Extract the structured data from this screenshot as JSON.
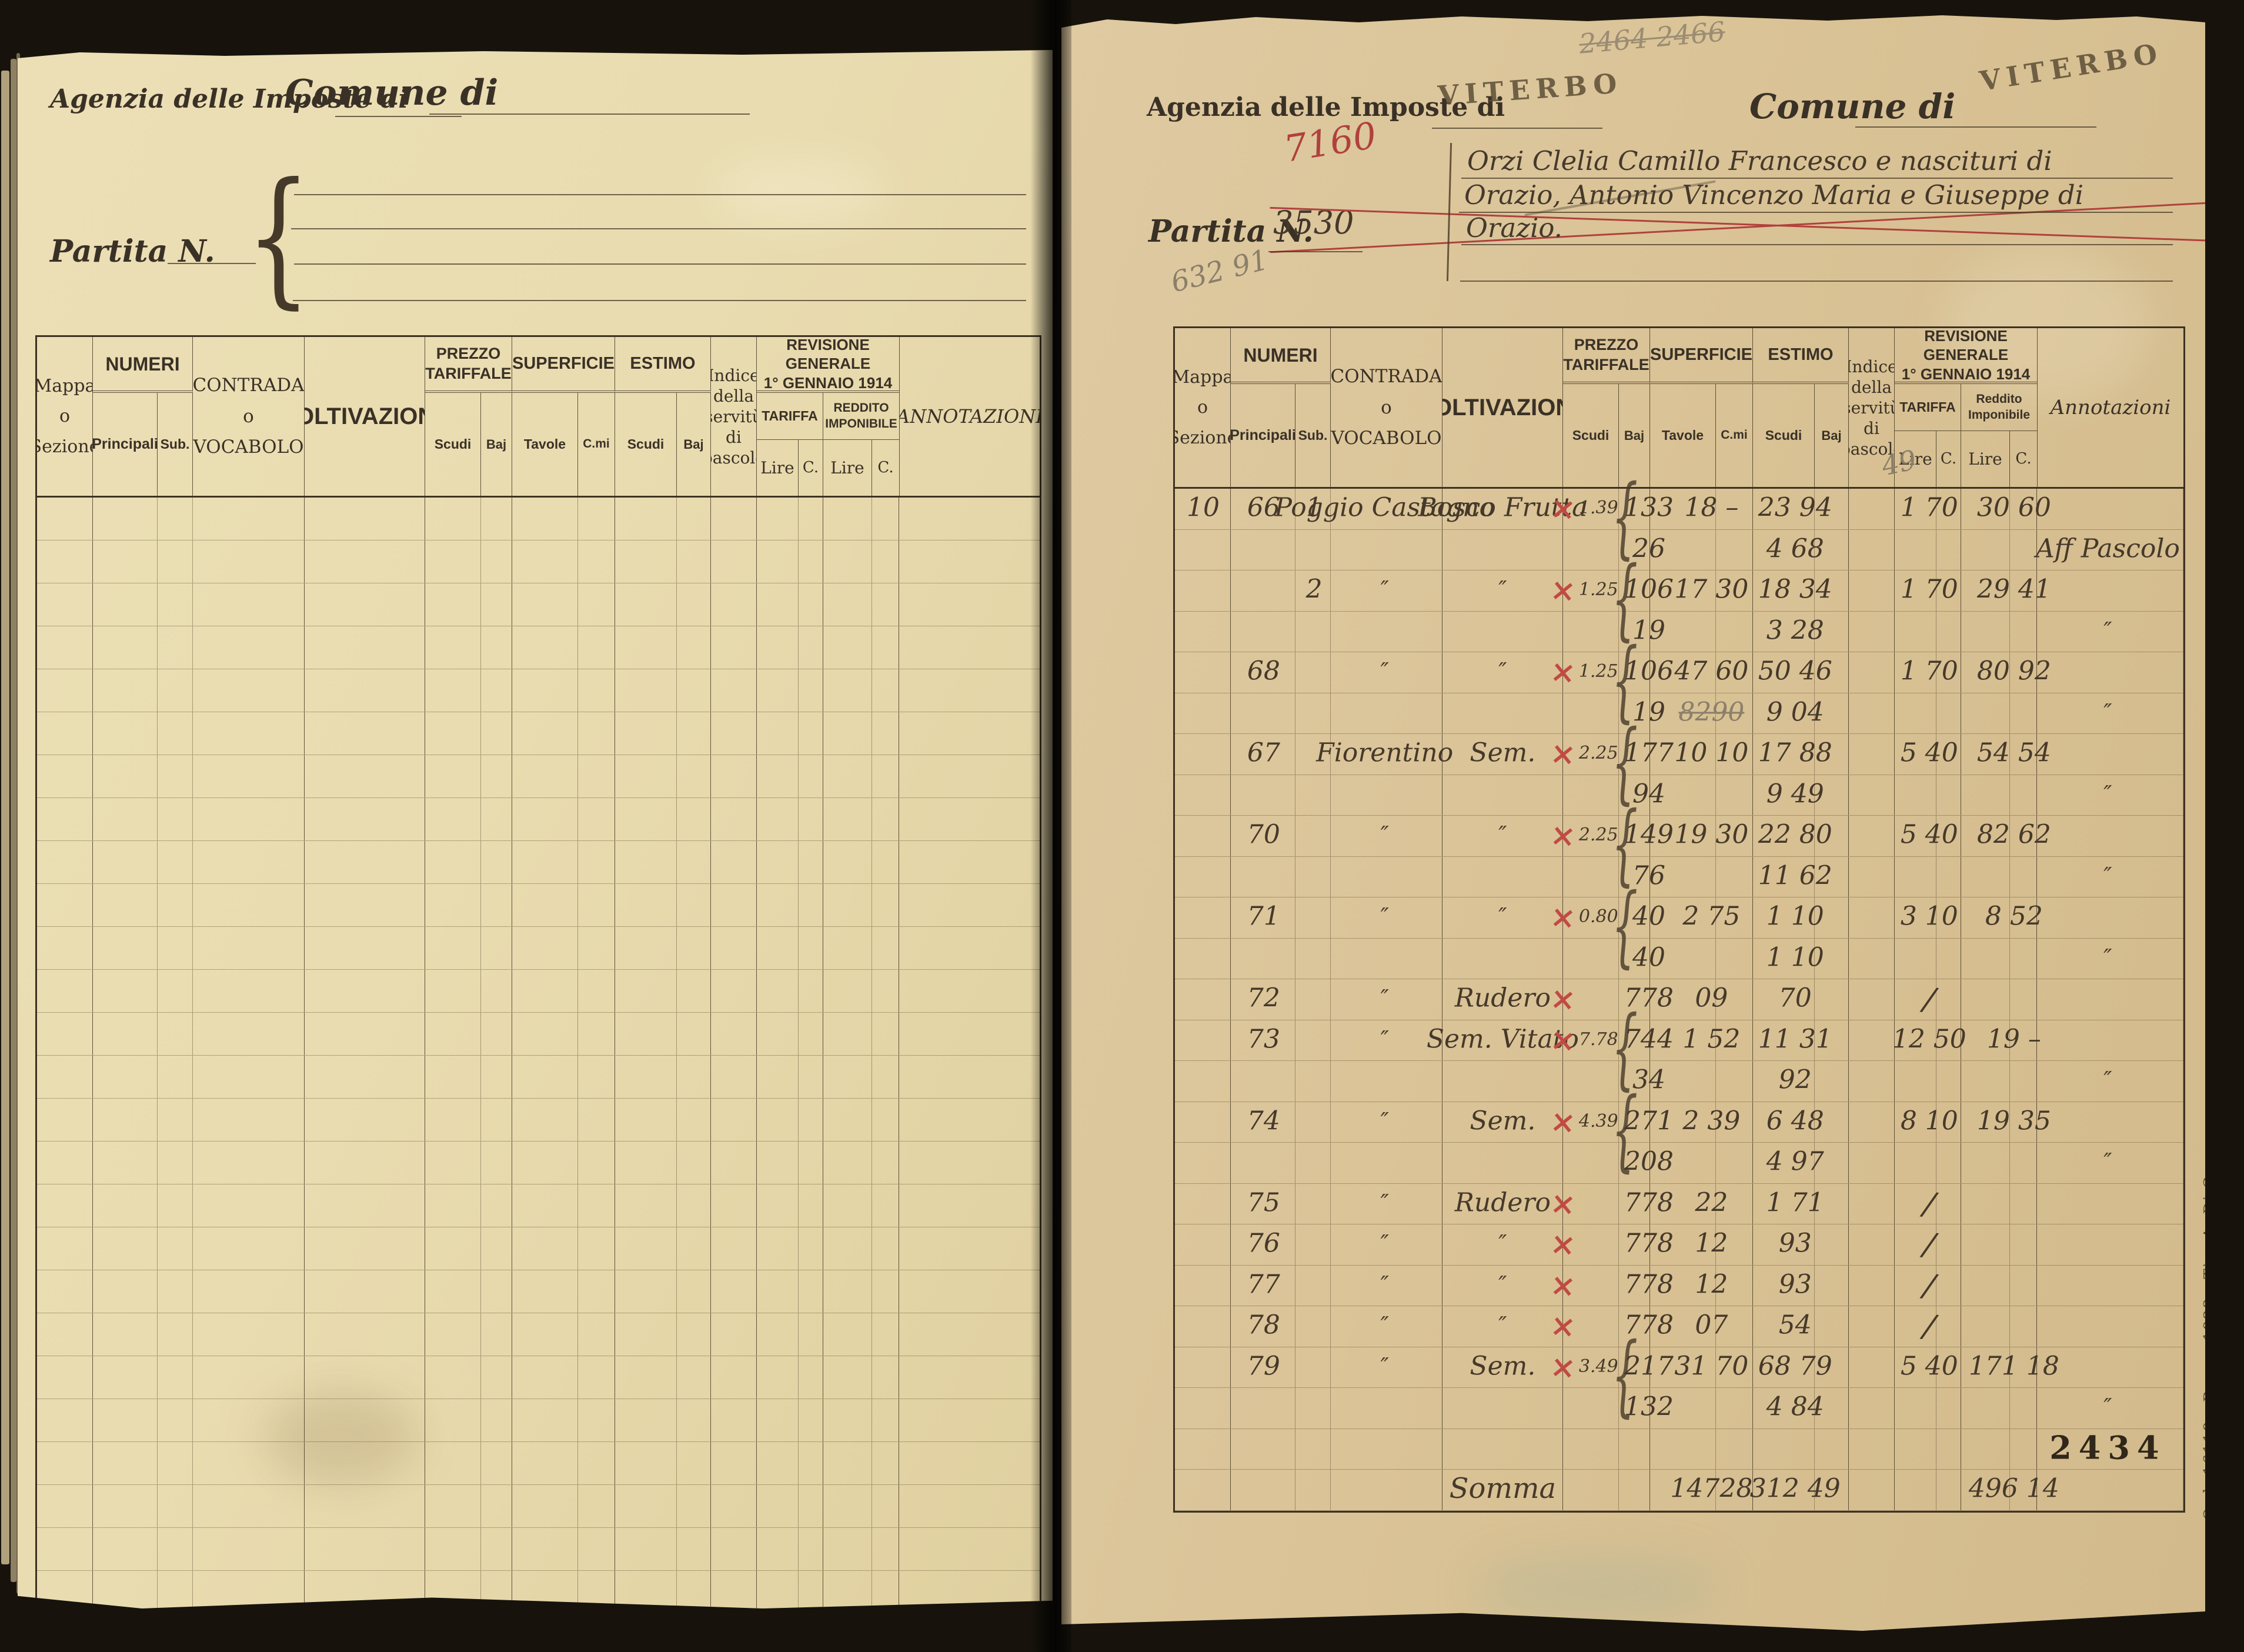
{
  "colors": {
    "paper_left": "#e9dcb0",
    "paper_right": "#d9c295",
    "ink": "#45392b",
    "red_ink": "#b0413c",
    "pencil": "#8b7f69",
    "print": "#3a3126"
  },
  "left_page": {
    "agenzia_label": "Agenzia delle Imposte di",
    "comune_label": "Comune di",
    "partita_label": "Partita N.",
    "empty_rows": 26
  },
  "right_page": {
    "agenzia_label": "Agenzia delle Imposte di",
    "agenzia_stamp": "VITERBO",
    "comune_label": "Comune di",
    "comune_stamp": "VITERBO",
    "pencil_top": "2464  2466",
    "partita_label": "Partita N.",
    "partita_old": "3530",
    "partita_new": "7160",
    "pencil_left": "632 91",
    "owner_lines": [
      "Orzi Clelia Camillo Francesco e nascituri di",
      "Orazio, Antonio Vincenzo Maria e Giuseppe di",
      "Orazio."
    ],
    "annotazioni_pencil": "49",
    "printer_imprint": "Ord. 16118 - Roma, 1923 - Tip. A. Di Capua"
  },
  "table_header": {
    "mappa_l1": "Mappa",
    "mappa_l2": "o",
    "mappa_l3": "Sezione",
    "numeri": "NUMERI",
    "principali": "Principali",
    "sub": "Sub.",
    "contrada_l1": "CONTRADA",
    "contrada_l2": "o",
    "contrada_l3": "VOCABOLO",
    "coltivazione": "COLTIVAZIONE",
    "prezzo": "PREZZO TARIFFALE",
    "superficie": "SUPERFICIE",
    "estimo": "ESTIMO",
    "scudi": "Scudi",
    "baj": "Baj",
    "tavole": "Tavole",
    "cmi": "C.mi",
    "indice": "Indice\ndella\nservitù\ndi\npascolo",
    "revisione": "REVISIONE  GENERALE\n1° GENNAIO 1914",
    "tariffa": "TARIFFA",
    "reddito": "Reddito Imponibile",
    "lire": "Lire",
    "c": "C.",
    "ann_left": "ANNOTAZIONI",
    "ann_right": "Annotazioni"
  },
  "right_rows": [
    {
      "items": [
        {
          "p": "m",
          "t": "10"
        },
        {
          "p": "pr",
          "t": "66"
        },
        {
          "p": "sb",
          "t": "1"
        },
        {
          "p": "ct",
          "t": "Poggio Castagno"
        },
        {
          "p": "cl",
          "t": "Bosco Frutta"
        },
        {
          "p": "x",
          "t": "×",
          "c": "xm"
        },
        {
          "p": "pz",
          "t": "1.39",
          "c": "sm"
        },
        {
          "p": "br",
          "t": "{",
          "c": "brc"
        },
        {
          "p": "mn",
          "t": "133"
        },
        {
          "p": "sp",
          "t": "18 –"
        },
        {
          "p": "es",
          "t": "23 94"
        },
        {
          "p": "tr",
          "t": "1 70"
        },
        {
          "p": "rd",
          "t": "30 60"
        }
      ]
    },
    {
      "items": [
        {
          "p": "mn",
          "t": "26"
        },
        {
          "p": "es",
          "t": "4 68"
        },
        {
          "p": "an",
          "t": "Aff Pascolo"
        }
      ]
    },
    {
      "items": [
        {
          "p": "sb",
          "t": "2"
        },
        {
          "p": "ct",
          "t": "″",
          "c": "ditto"
        },
        {
          "p": "cl",
          "t": "″",
          "c": "ditto"
        },
        {
          "p": "x",
          "t": "×",
          "c": "xm"
        },
        {
          "p": "pz",
          "t": "1.25",
          "c": "sm"
        },
        {
          "p": "br",
          "t": "{",
          "c": "brc"
        },
        {
          "p": "mn",
          "t": "106"
        },
        {
          "p": "sp",
          "t": "17 30"
        },
        {
          "p": "es",
          "t": "18 34"
        },
        {
          "p": "tr",
          "t": "1 70"
        },
        {
          "p": "rd",
          "t": "29 41"
        }
      ]
    },
    {
      "items": [
        {
          "p": "mn",
          "t": "19"
        },
        {
          "p": "es",
          "t": "3 28"
        },
        {
          "p": "an",
          "t": "″",
          "c": "ditto"
        }
      ]
    },
    {
      "items": [
        {
          "p": "pr",
          "t": "68"
        },
        {
          "p": "ct",
          "t": "″",
          "c": "ditto"
        },
        {
          "p": "cl",
          "t": "″",
          "c": "ditto"
        },
        {
          "p": "x",
          "t": "×",
          "c": "xm"
        },
        {
          "p": "pz",
          "t": "1.25",
          "c": "sm"
        },
        {
          "p": "br",
          "t": "{",
          "c": "brc"
        },
        {
          "p": "mn",
          "t": "106"
        },
        {
          "p": "sp",
          "t": "47 60"
        },
        {
          "p": "es",
          "t": "50 46"
        },
        {
          "p": "tr",
          "t": "1 70"
        },
        {
          "p": "rd",
          "t": "80 92"
        }
      ]
    },
    {
      "items": [
        {
          "p": "mn",
          "t": "19"
        },
        {
          "p": "sp",
          "t": "8290",
          "c": "pcl struck"
        },
        {
          "p": "es",
          "t": "9 04"
        },
        {
          "p": "an",
          "t": "″",
          "c": "ditto"
        }
      ]
    },
    {
      "items": [
        {
          "p": "pr",
          "t": "67"
        },
        {
          "p": "ct",
          "t": "Fiorentino"
        },
        {
          "p": "cl",
          "t": "Sem."
        },
        {
          "p": "x",
          "t": "×",
          "c": "xm"
        },
        {
          "p": "pz",
          "t": "2.25",
          "c": "sm"
        },
        {
          "p": "br",
          "t": "{",
          "c": "brc"
        },
        {
          "p": "mn",
          "t": "177"
        },
        {
          "p": "sp",
          "t": "10 10"
        },
        {
          "p": "es",
          "t": "17 88"
        },
        {
          "p": "tr",
          "t": "5 40"
        },
        {
          "p": "rd",
          "t": "54 54"
        }
      ]
    },
    {
      "items": [
        {
          "p": "mn",
          "t": "94"
        },
        {
          "p": "es",
          "t": "9 49"
        },
        {
          "p": "an",
          "t": "″",
          "c": "ditto"
        }
      ]
    },
    {
      "items": [
        {
          "p": "pr",
          "t": "70"
        },
        {
          "p": "ct",
          "t": "″",
          "c": "ditto"
        },
        {
          "p": "cl",
          "t": "″",
          "c": "ditto"
        },
        {
          "p": "x",
          "t": "×",
          "c": "xm"
        },
        {
          "p": "pz",
          "t": "2.25",
          "c": "sm"
        },
        {
          "p": "br",
          "t": "{",
          "c": "brc"
        },
        {
          "p": "mn",
          "t": "149"
        },
        {
          "p": "sp",
          "t": "19 30"
        },
        {
          "p": "es",
          "t": "22 80"
        },
        {
          "p": "tr",
          "t": "5 40"
        },
        {
          "p": "rd",
          "t": "82 62"
        }
      ]
    },
    {
      "items": [
        {
          "p": "mn",
          "t": "76"
        },
        {
          "p": "es",
          "t": "11 62"
        },
        {
          "p": "an",
          "t": "″",
          "c": "ditto"
        }
      ]
    },
    {
      "items": [
        {
          "p": "pr",
          "t": "71"
        },
        {
          "p": "ct",
          "t": "″",
          "c": "ditto"
        },
        {
          "p": "cl",
          "t": "″",
          "c": "ditto"
        },
        {
          "p": "x",
          "t": "×",
          "c": "xm"
        },
        {
          "p": "pz",
          "t": "0.80",
          "c": "sm"
        },
        {
          "p": "br",
          "t": "{",
          "c": "brc"
        },
        {
          "p": "mn",
          "t": "40"
        },
        {
          "p": "sp",
          "t": "2 75"
        },
        {
          "p": "es",
          "t": "1 10"
        },
        {
          "p": "tr",
          "t": "3 10"
        },
        {
          "p": "rd",
          "t": "8 52"
        }
      ]
    },
    {
      "items": [
        {
          "p": "mn",
          "t": "40"
        },
        {
          "p": "es",
          "t": "1 10"
        },
        {
          "p": "an",
          "t": "″",
          "c": "ditto"
        }
      ]
    },
    {
      "items": [
        {
          "p": "pr",
          "t": "72"
        },
        {
          "p": "ct",
          "t": "″",
          "c": "ditto"
        },
        {
          "p": "cl",
          "t": "Rudero"
        },
        {
          "p": "x",
          "t": "×",
          "c": "xm"
        },
        {
          "p": "mn",
          "t": "778"
        },
        {
          "p": "sp",
          "t": "09"
        },
        {
          "p": "es",
          "t": "70"
        },
        {
          "p": "tr",
          "t": "/",
          "c": "slash"
        }
      ]
    },
    {
      "items": [
        {
          "p": "pr",
          "t": "73"
        },
        {
          "p": "ct",
          "t": "″",
          "c": "ditto"
        },
        {
          "p": "cl",
          "t": "Sem. Vitato"
        },
        {
          "p": "x",
          "t": "×",
          "c": "xm"
        },
        {
          "p": "pz",
          "t": "7.78",
          "c": "sm"
        },
        {
          "p": "br",
          "t": "{",
          "c": "brc"
        },
        {
          "p": "mn",
          "t": "744"
        },
        {
          "p": "sp",
          "t": "1 52"
        },
        {
          "p": "es",
          "t": "11 31"
        },
        {
          "p": "tr",
          "t": "12 50"
        },
        {
          "p": "rd",
          "t": "19 –"
        }
      ]
    },
    {
      "items": [
        {
          "p": "mn",
          "t": "34"
        },
        {
          "p": "es",
          "t": "92"
        },
        {
          "p": "an",
          "t": "″",
          "c": "ditto"
        }
      ]
    },
    {
      "items": [
        {
          "p": "pr",
          "t": "74"
        },
        {
          "p": "ct",
          "t": "″",
          "c": "ditto"
        },
        {
          "p": "cl",
          "t": "Sem."
        },
        {
          "p": "x",
          "t": "×",
          "c": "xm"
        },
        {
          "p": "pz",
          "t": "4.39",
          "c": "sm"
        },
        {
          "p": "br",
          "t": "{",
          "c": "brc"
        },
        {
          "p": "mn",
          "t": "271"
        },
        {
          "p": "sp",
          "t": "2 39"
        },
        {
          "p": "es",
          "t": "6 48"
        },
        {
          "p": "tr",
          "t": "8 10"
        },
        {
          "p": "rd",
          "t": "19 35"
        }
      ]
    },
    {
      "items": [
        {
          "p": "mn",
          "t": "208"
        },
        {
          "p": "es",
          "t": "4 97"
        },
        {
          "p": "an",
          "t": "″",
          "c": "ditto"
        }
      ]
    },
    {
      "items": [
        {
          "p": "pr",
          "t": "75"
        },
        {
          "p": "ct",
          "t": "″",
          "c": "ditto"
        },
        {
          "p": "cl",
          "t": "Rudero"
        },
        {
          "p": "x",
          "t": "×",
          "c": "xm"
        },
        {
          "p": "mn",
          "t": "778"
        },
        {
          "p": "sp",
          "t": "22"
        },
        {
          "p": "es",
          "t": "1 71"
        },
        {
          "p": "tr",
          "t": "/",
          "c": "slash"
        }
      ]
    },
    {
      "items": [
        {
          "p": "pr",
          "t": "76"
        },
        {
          "p": "ct",
          "t": "″",
          "c": "ditto"
        },
        {
          "p": "cl",
          "t": "″",
          "c": "ditto"
        },
        {
          "p": "x",
          "t": "×",
          "c": "xm"
        },
        {
          "p": "mn",
          "t": "778"
        },
        {
          "p": "sp",
          "t": "12"
        },
        {
          "p": "es",
          "t": "93"
        },
        {
          "p": "tr",
          "t": "/",
          "c": "slash"
        }
      ]
    },
    {
      "items": [
        {
          "p": "pr",
          "t": "77"
        },
        {
          "p": "ct",
          "t": "″",
          "c": "ditto"
        },
        {
          "p": "cl",
          "t": "″",
          "c": "ditto"
        },
        {
          "p": "x",
          "t": "×",
          "c": "xm"
        },
        {
          "p": "mn",
          "t": "778"
        },
        {
          "p": "sp",
          "t": "12"
        },
        {
          "p": "es",
          "t": "93"
        },
        {
          "p": "tr",
          "t": "/",
          "c": "slash"
        }
      ]
    },
    {
      "items": [
        {
          "p": "pr",
          "t": "78"
        },
        {
          "p": "ct",
          "t": "″",
          "c": "ditto"
        },
        {
          "p": "cl",
          "t": "″",
          "c": "ditto"
        },
        {
          "p": "x",
          "t": "×",
          "c": "xm"
        },
        {
          "p": "mn",
          "t": "778"
        },
        {
          "p": "sp",
          "t": "07"
        },
        {
          "p": "es",
          "t": "54"
        },
        {
          "p": "tr",
          "t": "/",
          "c": "slash"
        }
      ]
    },
    {
      "items": [
        {
          "p": "pr",
          "t": "79"
        },
        {
          "p": "ct",
          "t": "″",
          "c": "ditto"
        },
        {
          "p": "cl",
          "t": "Sem."
        },
        {
          "p": "x",
          "t": "×",
          "c": "xm"
        },
        {
          "p": "pz",
          "t": "3.49",
          "c": "sm"
        },
        {
          "p": "br",
          "t": "{",
          "c": "brc"
        },
        {
          "p": "mn",
          "t": "217"
        },
        {
          "p": "sp",
          "t": "31 70"
        },
        {
          "p": "es",
          "t": "68 79"
        },
        {
          "p": "tr",
          "t": "5 40"
        },
        {
          "p": "rd",
          "t": "171 18"
        }
      ]
    },
    {
      "items": [
        {
          "p": "mn",
          "t": "132"
        },
        {
          "p": "es",
          "t": "4 84"
        },
        {
          "p": "an",
          "t": "″",
          "c": "ditto"
        }
      ]
    },
    {
      "items": [
        {
          "p": "an",
          "t": "2434",
          "c": "stamp"
        }
      ]
    },
    {
      "items": [
        {
          "p": "cl",
          "t": "Somma",
          "c": "lg"
        },
        {
          "p": "sp",
          "t": "14728"
        },
        {
          "p": "es",
          "t": "312 49"
        },
        {
          "p": "rd",
          "t": "496 14"
        }
      ]
    }
  ]
}
